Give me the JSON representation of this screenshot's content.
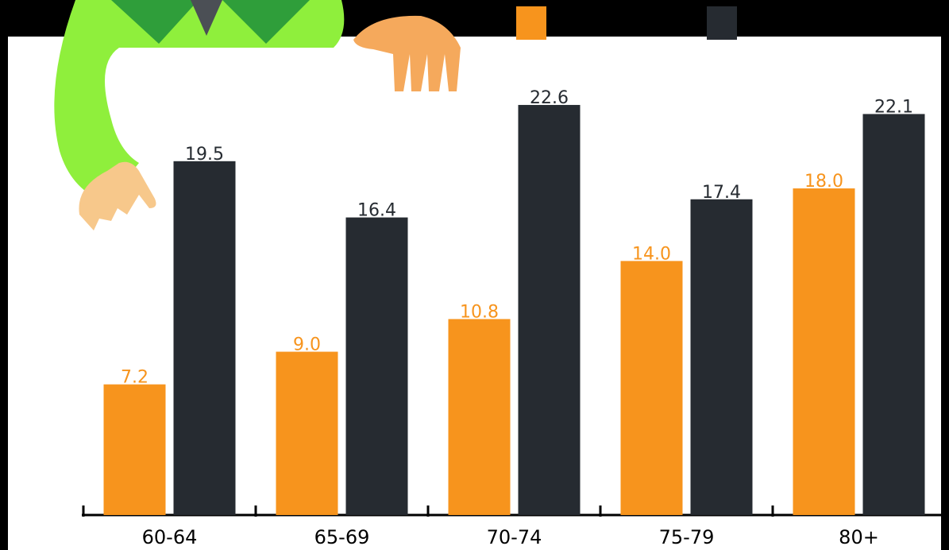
{
  "chart_data": {
    "type": "bar",
    "categories": [
      "60-64",
      "65-69",
      "70-74",
      "75-79",
      "80+"
    ],
    "series": [
      {
        "color": "#f7941d",
        "values": [
          7.2,
          9.0,
          10.8,
          14.0,
          18.0
        ],
        "value_labels": [
          "7.2",
          "9.0",
          "10.8",
          "14.0",
          "18.0"
        ]
      },
      {
        "color": "#262b31",
        "values": [
          19.5,
          16.4,
          22.6,
          17.4,
          22.1
        ],
        "value_labels": [
          "19.5",
          "16.4",
          "22.6",
          "17.4",
          "22.1"
        ]
      }
    ]
  }
}
